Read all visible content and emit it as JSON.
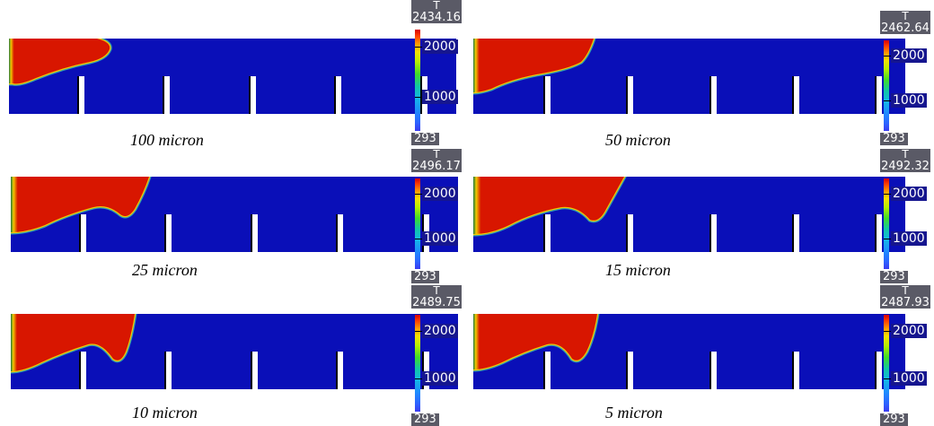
{
  "colors": {
    "domain": "#0a0fb8",
    "hot": "#d81600",
    "edge": "#f0c800",
    "gap": "#ffffff",
    "colorbar_header": "#5a5a66"
  },
  "colorbar": {
    "variable": "T",
    "mid_tick": "2000",
    "low_tick": "1000",
    "min": "293"
  },
  "panels": [
    {
      "caption": "100 micron",
      "max": "2434.16"
    },
    {
      "caption": "50 micron",
      "max": "2462.64"
    },
    {
      "caption": "25 micron",
      "max": "2496.17"
    },
    {
      "caption": "15 micron",
      "max": "2492.32"
    },
    {
      "caption": "10 micron",
      "max": "2489.75"
    },
    {
      "caption": "5 micron",
      "max": "2487.93"
    }
  ]
}
